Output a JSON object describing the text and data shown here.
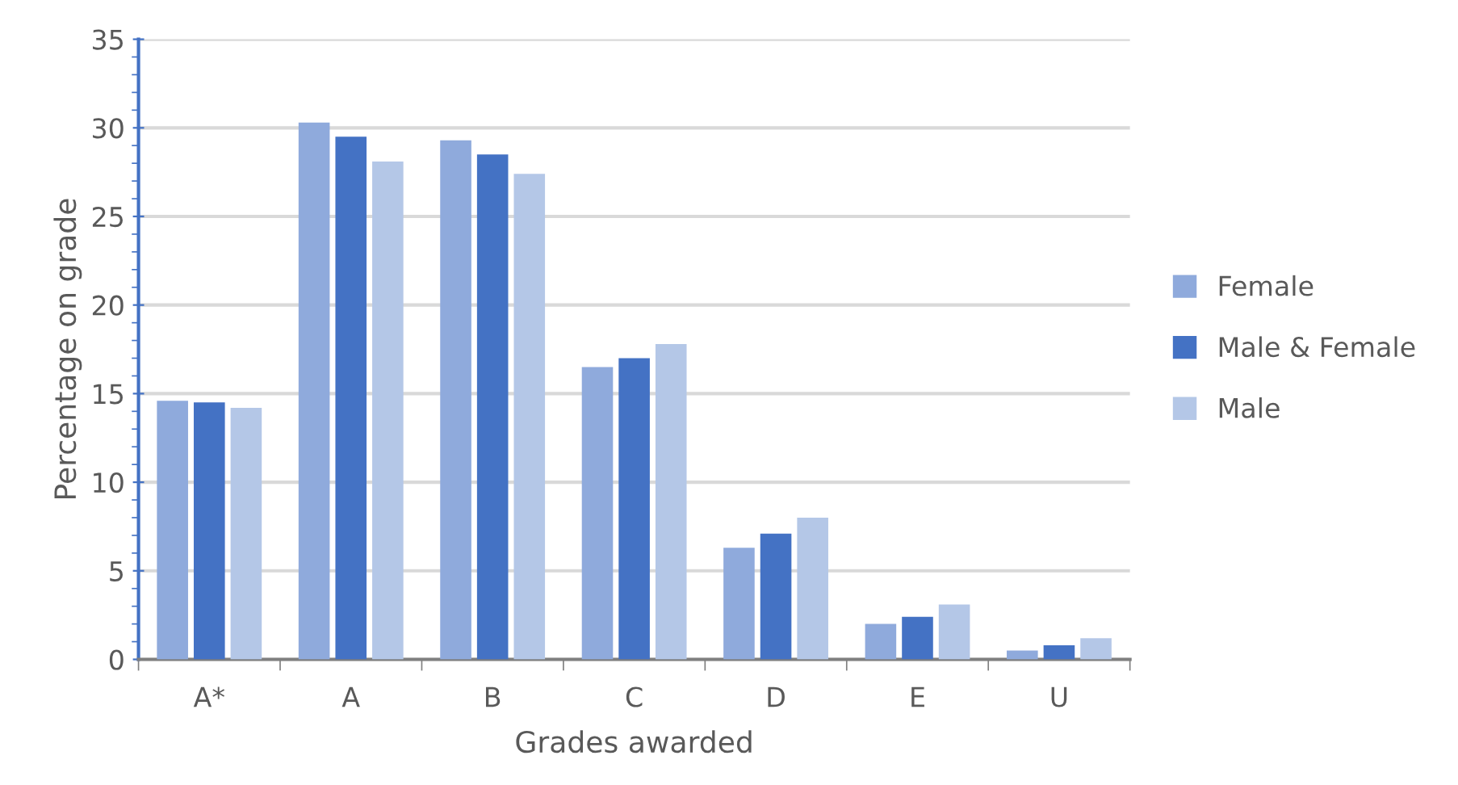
{
  "chart_data": {
    "type": "bar",
    "xlabel": "Grades awarded",
    "ylabel": "Percentage on grade",
    "categories": [
      "A*",
      "A",
      "B",
      "C",
      "D",
      "E",
      "U"
    ],
    "series": [
      {
        "name": "Female",
        "color": "#8faadc",
        "values": [
          14.6,
          30.3,
          29.3,
          16.5,
          6.3,
          2.0,
          0.5
        ]
      },
      {
        "name": "Male & Female",
        "color": "#4472c4",
        "values": [
          14.5,
          29.5,
          28.5,
          17.0,
          7.1,
          2.4,
          0.8
        ]
      },
      {
        "name": "Male",
        "color": "#b4c7e7",
        "values": [
          14.2,
          28.1,
          27.4,
          17.8,
          8.0,
          3.1,
          1.2
        ]
      }
    ],
    "ylim": [
      0,
      35
    ],
    "yticks": [
      0,
      5,
      10,
      15,
      20,
      25,
      30,
      35
    ],
    "grid": "y",
    "legend": "right"
  }
}
